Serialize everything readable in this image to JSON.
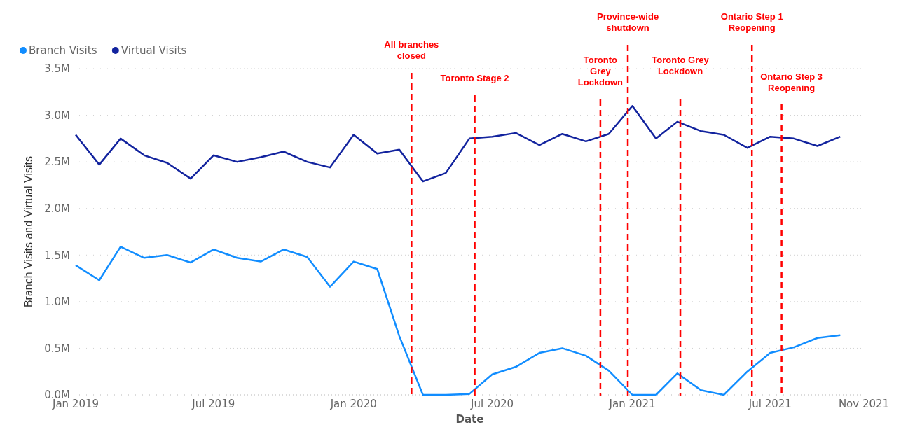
{
  "chart_data": {
    "type": "line",
    "xlabel": "Date",
    "ylabel": "Branch Visits and Virtual Visits",
    "x": [
      "2019-01",
      "2019-02",
      "2019-03",
      "2019-04",
      "2019-05",
      "2019-06",
      "2019-07",
      "2019-08",
      "2019-09",
      "2019-10",
      "2019-11",
      "2019-12",
      "2020-01",
      "2020-02",
      "2020-03",
      "2020-04",
      "2020-05",
      "2020-06",
      "2020-07",
      "2020-08",
      "2020-09",
      "2020-10",
      "2020-11",
      "2020-12",
      "2021-01",
      "2021-02",
      "2021-03",
      "2021-04",
      "2021-05",
      "2021-06",
      "2021-07",
      "2021-08",
      "2021-09",
      "2021-10"
    ],
    "series": [
      {
        "name": "Branch Visits",
        "color": "#118dff",
        "values": [
          1.39,
          1.23,
          1.59,
          1.47,
          1.5,
          1.42,
          1.56,
          1.47,
          1.43,
          1.56,
          1.48,
          1.16,
          1.43,
          1.35,
          0.63,
          0,
          0,
          0.01,
          0.22,
          0.3,
          0.45,
          0.5,
          0.42,
          0.26,
          0,
          0,
          0.23,
          0.05,
          0,
          0.25,
          0.45,
          0.51,
          0.61,
          0.64
        ]
      },
      {
        "name": "Virtual Visits",
        "color": "#12239e",
        "values": [
          2.79,
          2.47,
          2.75,
          2.57,
          2.49,
          2.32,
          2.57,
          2.5,
          2.55,
          2.61,
          2.5,
          2.44,
          2.79,
          2.59,
          2.63,
          2.29,
          2.38,
          2.75,
          2.77,
          2.81,
          2.68,
          2.8,
          2.72,
          2.8,
          3.1,
          2.75,
          2.93,
          2.83,
          2.79,
          2.65,
          2.77,
          2.75,
          2.67,
          2.77
        ]
      }
    ],
    "xlim": [
      "2019-01-01",
      "2021-11-01"
    ],
    "xticks": [
      {
        "value": "2019-01",
        "label": "Jan 2019"
      },
      {
        "value": "2019-07",
        "label": "Jul 2019"
      },
      {
        "value": "2020-01",
        "label": "Jan 2020"
      },
      {
        "value": "2020-07",
        "label": "Jul 2020"
      },
      {
        "value": "2021-01",
        "label": "Jan 2021"
      },
      {
        "value": "2021-07",
        "label": "Jul 2021"
      },
      {
        "value": "2021-11",
        "label": "Nov 2021"
      }
    ],
    "ylim": [
      0,
      3.5
    ],
    "yticks": [
      {
        "value": 0,
        "label": "0.0M"
      },
      {
        "value": 0.5,
        "label": "0.5M"
      },
      {
        "value": 1,
        "label": "1.0M"
      },
      {
        "value": 1.5,
        "label": "1.5M"
      },
      {
        "value": 2,
        "label": "2.0M"
      },
      {
        "value": 2.5,
        "label": "2.5M"
      },
      {
        "value": 3,
        "label": "3.0M"
      },
      {
        "value": 3.5,
        "label": "3.5M"
      }
    ],
    "ref_lines": [
      {
        "axis": "x",
        "value": "2020-03-17",
        "label": "All branches\nclosed",
        "color": "#ff0000",
        "line_style": "dashed"
      },
      {
        "axis": "x",
        "value": "2020-06-08",
        "label": "Toronto Stage 2",
        "color": "#ff0000",
        "line_style": "dashed"
      },
      {
        "axis": "x",
        "value": "2020-11-20",
        "label": "Toronto\nGrey\nLockdown",
        "color": "#ff0000",
        "line_style": "dashed"
      },
      {
        "axis": "x",
        "value": "2020-12-26",
        "label": "Province-wide\nshutdown",
        "color": "#ff0000",
        "line_style": "dashed"
      },
      {
        "axis": "x",
        "value": "2021-03-05",
        "label": "Toronto Grey\nLockdown",
        "color": "#ff0000",
        "line_style": "dashed"
      },
      {
        "axis": "x",
        "value": "2021-06-07",
        "label": "Ontario Step 1\nReopening",
        "color": "#ff0000",
        "line_style": "dashed"
      },
      {
        "axis": "x",
        "value": "2021-07-16",
        "label": "Ontario Step 3\nReopening",
        "color": "#ff0000",
        "line_style": "dashed"
      }
    ],
    "grid": "y",
    "legend": "top left",
    "marker": "none",
    "line_style": "solid"
  }
}
